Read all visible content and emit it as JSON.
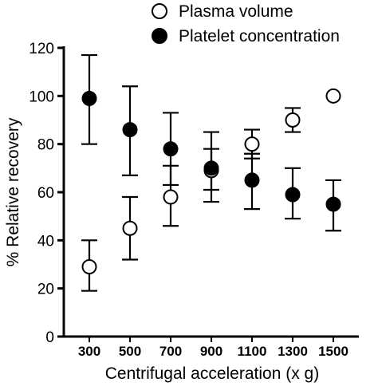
{
  "chart_data": {
    "type": "scatter",
    "xlabel": "Centrifugal acceleration (x g)",
    "ylabel": "% Relative recovery",
    "categories": [
      "300",
      "500",
      "700",
      "900",
      "1100",
      "1300",
      "1500"
    ],
    "ylim": [
      0,
      120
    ],
    "yticks": [
      0,
      20,
      40,
      60,
      80,
      100,
      120
    ],
    "legend_position": "top-right",
    "grid": false,
    "series": [
      {
        "name": "Plasma volume",
        "marker": "open-circle",
        "values": [
          29,
          45,
          58,
          69,
          80,
          90,
          100
        ],
        "error_upper": [
          40,
          58,
          71,
          78,
          86,
          95,
          null
        ],
        "error_lower": [
          19,
          32,
          46,
          61,
          74,
          85,
          null
        ]
      },
      {
        "name": "Platelet concentration",
        "marker": "filled-circle",
        "values": [
          99,
          86,
          78,
          70,
          65,
          59,
          55
        ],
        "error_upper": [
          117,
          104,
          93,
          85,
          76,
          70,
          65
        ],
        "error_lower": [
          80,
          67,
          63,
          56,
          53,
          49,
          44
        ]
      }
    ]
  }
}
